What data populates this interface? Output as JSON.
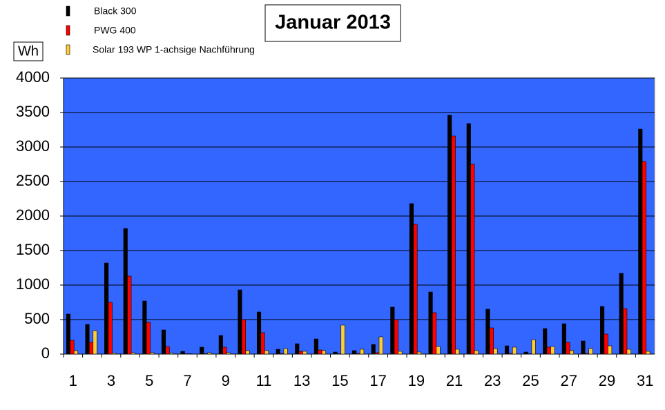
{
  "chart_data": {
    "type": "bar",
    "title": "Januar 2013",
    "y_label": "Wh",
    "categories": [
      "1",
      null,
      "3",
      null,
      "5",
      null,
      "7",
      null,
      "9",
      null,
      "11",
      null,
      "13",
      null,
      "15",
      null,
      "17",
      null,
      "19",
      null,
      "21",
      null,
      "23",
      null,
      "25",
      null,
      "27",
      null,
      "29",
      null,
      "31"
    ],
    "series": [
      {
        "name": "Black 300",
        "color": "#000000",
        "values": [
          580,
          430,
          1320,
          1820,
          770,
          350,
          40,
          100,
          270,
          930,
          610,
          70,
          150,
          220,
          30,
          50,
          140,
          680,
          2180,
          900,
          3460,
          3340,
          650,
          120,
          30,
          370,
          440,
          190,
          690,
          1170,
          3260
        ]
      },
      {
        "name": "PWG 400",
        "color": "#ff0000",
        "values": [
          200,
          170,
          750,
          1130,
          460,
          110,
          5,
          5,
          100,
          500,
          310,
          10,
          40,
          60,
          5,
          10,
          20,
          500,
          1880,
          600,
          3160,
          2750,
          380,
          10,
          5,
          100,
          170,
          10,
          290,
          660,
          2790
        ]
      },
      {
        "name": "Solar 193 WP 1-achsige Nachführung",
        "color": "#ffcc33",
        "values": [
          50,
          340,
          15,
          20,
          20,
          15,
          5,
          20,
          20,
          50,
          50,
          80,
          40,
          50,
          420,
          70,
          250,
          40,
          30,
          110,
          70,
          50,
          80,
          100,
          210,
          110,
          50,
          80,
          120,
          70,
          40
        ]
      }
    ],
    "ylim": [
      0,
      4000
    ],
    "yticks": [
      0,
      500,
      1000,
      1500,
      2000,
      2500,
      3000,
      3500,
      4000
    ],
    "grid": true,
    "plot_background": "#3366ff"
  }
}
